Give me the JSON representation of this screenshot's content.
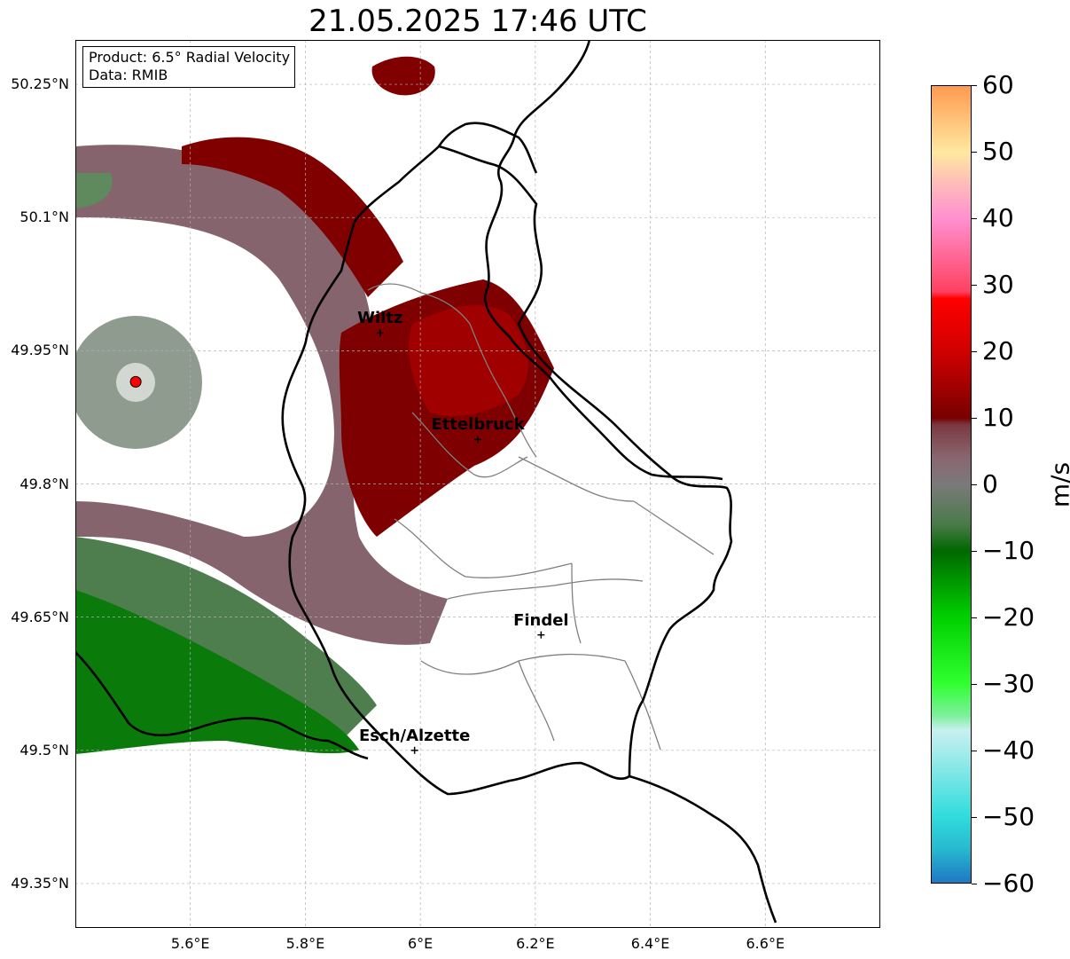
{
  "title": "21.05.2025 17:46 UTC",
  "info": {
    "product": "Product: 6.5° Radial Velocity",
    "source": "Data: RMIB"
  },
  "map": {
    "lon_range": [
      5.4,
      6.8
    ],
    "lat_range": [
      49.3,
      50.3
    ],
    "lat_ticks": [
      "50.25°N",
      "50.1°N",
      "49.95°N",
      "49.8°N",
      "49.65°N",
      "49.5°N",
      "49.35°N"
    ],
    "lon_ticks": [
      "5.6°E",
      "5.8°E",
      "6°E",
      "6.2°E",
      "6.4°E",
      "6.6°E"
    ],
    "cities": [
      {
        "name": "Wiltz",
        "lon": 5.93,
        "lat": 49.97
      },
      {
        "name": "Ettelbruck",
        "lon": 6.1,
        "lat": 49.85
      },
      {
        "name": "Findel",
        "lon": 6.21,
        "lat": 49.63
      },
      {
        "name": "Esch/Alzette",
        "lon": 5.99,
        "lat": 49.5
      }
    ],
    "radar_site": {
      "lon": 5.505,
      "lat": 49.915
    },
    "border_color": "#000000",
    "canton_color": "#808080",
    "grid": true
  },
  "colorbar": {
    "unit": "m/s",
    "ticks": [
      "60",
      "50",
      "40",
      "30",
      "20",
      "10",
      "0",
      "−10",
      "−20",
      "−30",
      "−40",
      "−50",
      "−60"
    ],
    "range": [
      -60,
      60
    ],
    "stops": [
      {
        "v": -60,
        "c": "#1f78c4"
      },
      {
        "v": -55,
        "c": "#27b8d0"
      },
      {
        "v": -50,
        "c": "#30dcdc"
      },
      {
        "v": -40,
        "c": "#a8ecec"
      },
      {
        "v": -37,
        "c": "#c8f0f0"
      },
      {
        "v": -35,
        "c": "#80f0a0"
      },
      {
        "v": -30,
        "c": "#30ff30"
      },
      {
        "v": -20,
        "c": "#00d000"
      },
      {
        "v": -10,
        "c": "#006800"
      },
      {
        "v": -6,
        "c": "#4a7a4a"
      },
      {
        "v": 0,
        "c": "#7a7a7a"
      },
      {
        "v": 4,
        "c": "#8a6670"
      },
      {
        "v": 9,
        "c": "#7a3840"
      },
      {
        "v": 10,
        "c": "#780000"
      },
      {
        "v": 20,
        "c": "#d00000"
      },
      {
        "v": 28,
        "c": "#ff0000"
      },
      {
        "v": 29,
        "c": "#ff4060"
      },
      {
        "v": 40,
        "c": "#ff90d0"
      },
      {
        "v": 44,
        "c": "#ffb0c0"
      },
      {
        "v": 50,
        "c": "#ffe8a0"
      },
      {
        "v": 60,
        "c": "#ff9a50"
      }
    ]
  },
  "echo_colors": {
    "far_green": "#0a7a0a",
    "mid_green": "#4e7e4e",
    "grey_green": "#6a7a6a",
    "mauve": "#86646e",
    "dark_red": "#800000",
    "red": "#b00000"
  }
}
